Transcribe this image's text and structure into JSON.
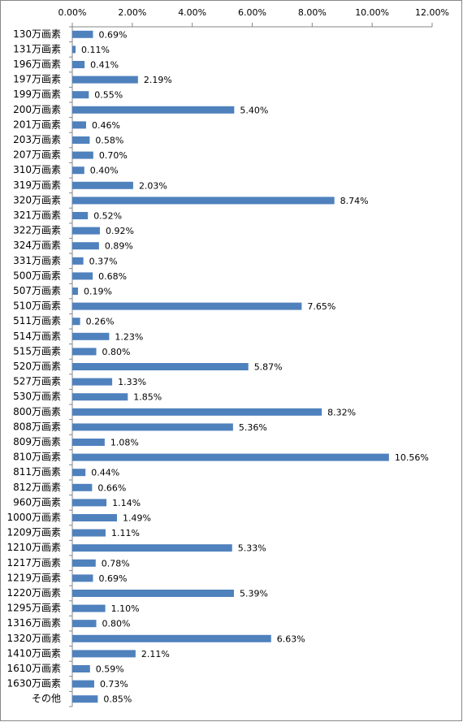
{
  "chart_data": {
    "type": "bar",
    "orientation": "horizontal",
    "color": "#4f81bd",
    "grid": false,
    "categories": [
      "130万画素",
      "131万画素",
      "196万画素",
      "197万画素",
      "199万画素",
      "200万画素",
      "201万画素",
      "203万画素",
      "207万画素",
      "310万画素",
      "319万画素",
      "320万画素",
      "321万画素",
      "322万画素",
      "324万画素",
      "331万画素",
      "500万画素",
      "507万画素",
      "510万画素",
      "511万画素",
      "514万画素",
      "515万画素",
      "520万画素",
      "527万画素",
      "530万画素",
      "800万画素",
      "808万画素",
      "809万画素",
      "810万画素",
      "811万画素",
      "812万画素",
      "960万画素",
      "1000万画素",
      "1209万画素",
      "1210万画素",
      "1217万画素",
      "1219万画素",
      "1220万画素",
      "1295万画素",
      "1316万画素",
      "1320万画素",
      "1410万画素",
      "1610万画素",
      "1630万画素",
      "その他"
    ],
    "values": [
      0.69,
      0.11,
      0.41,
      2.19,
      0.55,
      5.4,
      0.46,
      0.58,
      0.7,
      0.4,
      2.03,
      8.74,
      0.52,
      0.92,
      0.89,
      0.37,
      0.68,
      0.19,
      7.65,
      0.26,
      1.23,
      0.8,
      5.87,
      1.33,
      1.85,
      8.32,
      5.36,
      1.08,
      10.56,
      0.44,
      0.66,
      1.14,
      1.49,
      1.11,
      5.33,
      0.78,
      0.69,
      5.39,
      1.1,
      0.8,
      6.63,
      2.11,
      0.59,
      0.73,
      0.85
    ],
    "value_labels": [
      "0.69%",
      "0.11%",
      "0.41%",
      "2.19%",
      "0.55%",
      "5.40%",
      "0.46%",
      "0.58%",
      "0.70%",
      "0.40%",
      "2.03%",
      "8.74%",
      "0.52%",
      "0.92%",
      "0.89%",
      "0.37%",
      "0.68%",
      "0.19%",
      "7.65%",
      "0.26%",
      "1.23%",
      "0.80%",
      "5.87%",
      "1.33%",
      "1.85%",
      "8.32%",
      "5.36%",
      "1.08%",
      "10.56%",
      "0.44%",
      "0.66%",
      "1.14%",
      "1.49%",
      "1.11%",
      "5.33%",
      "0.78%",
      "0.69%",
      "5.39%",
      "1.10%",
      "0.80%",
      "6.63%",
      "2.11%",
      "0.59%",
      "0.73%",
      "0.85%"
    ],
    "xlim": [
      0,
      12
    ],
    "xticks": [
      {
        "value": 0,
        "label": "0.00%"
      },
      {
        "value": 2,
        "label": "2.00%"
      },
      {
        "value": 4,
        "label": "4.00%"
      },
      {
        "value": 6,
        "label": "6.00%"
      },
      {
        "value": 8,
        "label": "8.00%"
      },
      {
        "value": 10,
        "label": "10.00%"
      },
      {
        "value": 12,
        "label": "12.00%"
      }
    ]
  }
}
